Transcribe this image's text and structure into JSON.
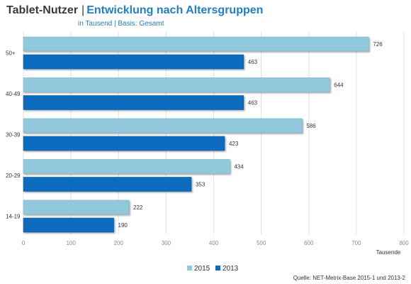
{
  "header": {
    "title_main": "Tablet-Nutzer",
    "separator": "|",
    "title_sub": "Entwicklung nach Altersgruppen",
    "subtitle": "in Tausend  |  Basis: Gesamt"
  },
  "source": "Quelle: NET-Metrix-Base 2015-1 und 2013-2",
  "colors": {
    "s2015": "#92c8dc",
    "s2013": "#0a6cbd",
    "grid": "#e3e3e3",
    "text": "#333333"
  },
  "chart_data": {
    "type": "bar",
    "orientation": "horizontal",
    "categories": [
      "50+",
      "40-49",
      "30-39",
      "20-29",
      "14-19"
    ],
    "series": [
      {
        "name": "2015",
        "values": [
          726,
          644,
          586,
          434,
          222
        ]
      },
      {
        "name": "2013",
        "values": [
          463,
          463,
          423,
          353,
          190
        ]
      }
    ],
    "xlim": [
      0,
      800
    ],
    "xticks": [
      0,
      100,
      200,
      300,
      400,
      500,
      600,
      700,
      800
    ],
    "xlabel": "Tausende",
    "legend_position": "bottom-center",
    "grid": true
  }
}
